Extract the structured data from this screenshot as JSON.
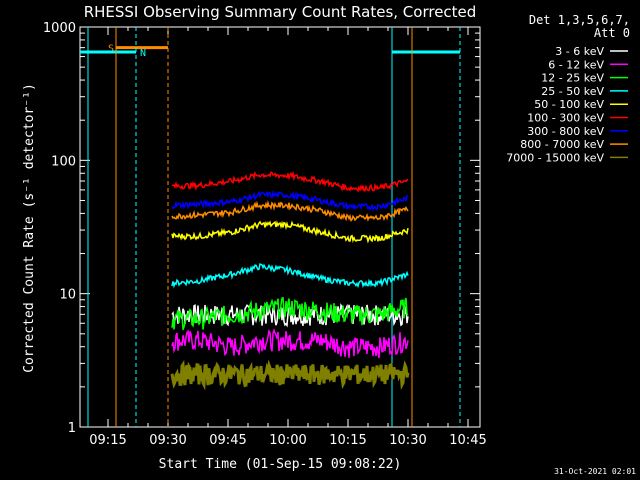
{
  "title": "RHESSI Observing Summary Count Rates, Corrected",
  "timestamp": "31-Oct-2021 02:01",
  "legend": {
    "header1": "Det 1,3,5,6,7,",
    "header2": "Att 0"
  },
  "chart_data": {
    "type": "line",
    "title": "RHESSI Observing Summary Count Rates, Corrected",
    "xlabel": "Start Time (01-Sep-15 09:08:22)",
    "ylabel": "Corrected Count Rate (s⁻¹ detector⁻¹)",
    "yscale": "log",
    "ylim": [
      1,
      1000
    ],
    "xlim_minutes": [
      "09:08",
      "10:48"
    ],
    "x_ticks": [
      "09:15",
      "09:30",
      "09:45",
      "10:00",
      "10:15",
      "10:30",
      "10:45"
    ],
    "y_ticks": [
      "1",
      "10",
      "100",
      "1000"
    ],
    "x": [
      "09:31",
      "09:38",
      "09:46",
      "09:53",
      "10:00",
      "10:08",
      "10:15",
      "10:23",
      "10:30"
    ],
    "series": [
      {
        "name": "3 - 6 keV",
        "color": "#ffffff",
        "values": [
          7,
          7,
          7,
          7,
          7,
          7,
          7,
          7,
          7
        ]
      },
      {
        "name": "6 - 12 keV",
        "color": "#ff00ff",
        "values": [
          4.5,
          4.5,
          4,
          4.5,
          4.5,
          4.5,
          4,
          4,
          4.5
        ]
      },
      {
        "name": "12 - 25 keV",
        "color": "#00ff00",
        "values": [
          6.5,
          6.5,
          7,
          7.5,
          8,
          7.5,
          7,
          7,
          8
        ]
      },
      {
        "name": "25 - 50 keV",
        "color": "#00ffff",
        "values": [
          12,
          12.5,
          14,
          16,
          15,
          13,
          12,
          12,
          14
        ]
      },
      {
        "name": "50 - 100 keV",
        "color": "#ffff00",
        "values": [
          27,
          27,
          29,
          33,
          33,
          29,
          26,
          26,
          30
        ]
      },
      {
        "name": "100 - 300 keV",
        "color": "#ff0000",
        "values": [
          64,
          65,
          70,
          78,
          77,
          70,
          62,
          62,
          70
        ]
      },
      {
        "name": "300 - 800 keV",
        "color": "#0000ff",
        "values": [
          46,
          47,
          49,
          55,
          55,
          50,
          45,
          45,
          52
        ]
      },
      {
        "name": "800 - 7000 keV",
        "color": "#ff8c00",
        "values": [
          38,
          39,
          41,
          46,
          46,
          42,
          37,
          37,
          43
        ]
      },
      {
        "name": "7000 - 15000 keV",
        "color": "#808000",
        "values": [
          2.5,
          2.5,
          2.5,
          2.5,
          2.5,
          2.5,
          2.5,
          2.5,
          2.5
        ]
      }
    ],
    "flags": [
      {
        "label": "S",
        "color": "#ff8c00",
        "level": 700
      },
      {
        "label": "N",
        "color": "#00ffff",
        "level": 650
      }
    ]
  },
  "colors": {
    "axes": "#ffffff",
    "background": "#000000"
  }
}
